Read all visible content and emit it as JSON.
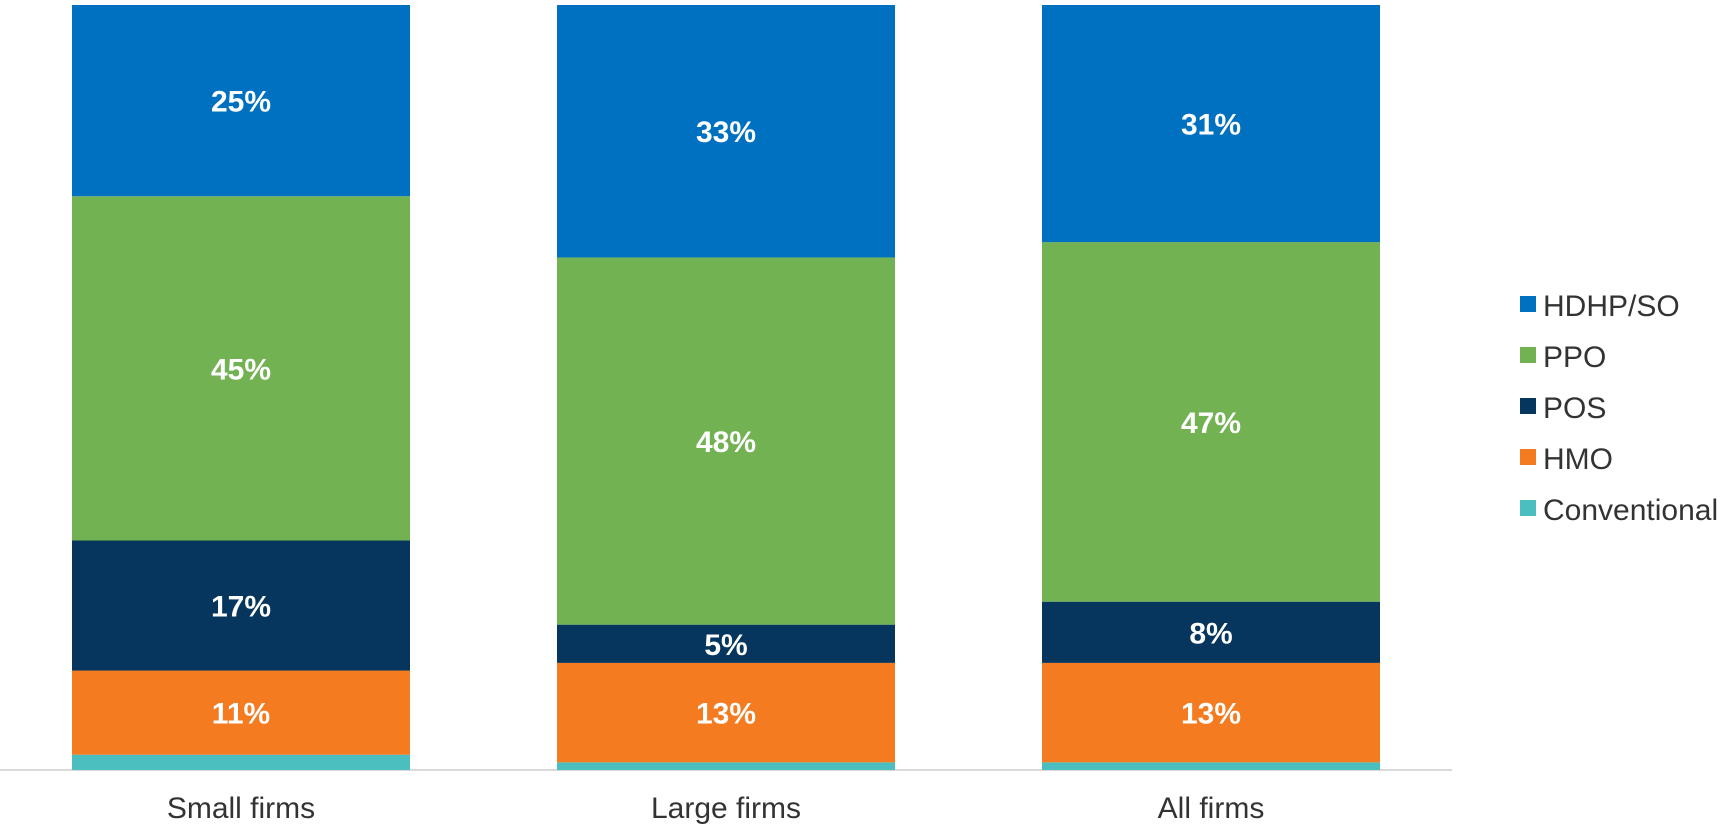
{
  "chart_data": {
    "type": "bar",
    "stacked": true,
    "categories": [
      "Small firms",
      "Large firms",
      "All firms"
    ],
    "series": [
      {
        "name": "Conventional",
        "color": "#4BBFBF",
        "values": [
          2,
          1,
          1
        ]
      },
      {
        "name": "HMO",
        "color": "#F47B20",
        "values": [
          11,
          13,
          13
        ]
      },
      {
        "name": "POS",
        "color": "#06365D",
        "values": [
          17,
          5,
          8
        ]
      },
      {
        "name": "PPO",
        "color": "#72B253",
        "values": [
          45,
          48,
          47
        ]
      },
      {
        "name": "HDHP/SO",
        "color": "#0070C0",
        "values": [
          25,
          33,
          31
        ]
      }
    ],
    "data_labels": {
      "Conventional": [
        "",
        "",
        ""
      ],
      "HMO": [
        "11%",
        "13%",
        "13%"
      ],
      "POS": [
        "17%",
        "5%",
        "8%"
      ],
      "PPO": [
        "45%",
        "48%",
        "47%"
      ],
      "HDHP/SO": [
        "25%",
        "33%",
        "31%"
      ]
    },
    "legend_order": [
      "HDHP/SO",
      "PPO",
      "POS",
      "HMO",
      "Conventional"
    ],
    "legend_position": "right",
    "ylim": [
      0,
      100
    ],
    "grid": false,
    "title": "",
    "xlabel": "",
    "ylabel": ""
  }
}
